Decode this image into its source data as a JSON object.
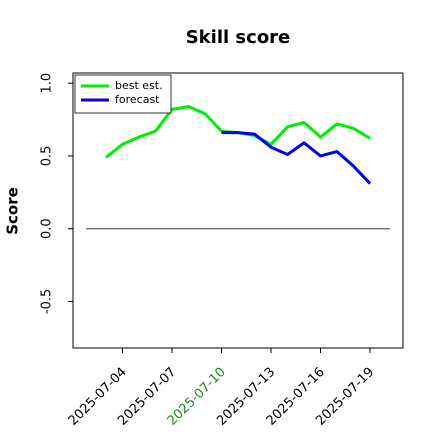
{
  "chart_data": {
    "type": "line",
    "title": "Skill score",
    "y_label": "Score",
    "x": [
      "2025-07-03",
      "2025-07-04",
      "2025-07-05",
      "2025-07-06",
      "2025-07-07",
      "2025-07-08",
      "2025-07-09",
      "2025-07-10",
      "2025-07-11",
      "2025-07-12",
      "2025-07-13",
      "2025-07-14",
      "2025-07-15",
      "2025-07-16",
      "2025-07-17",
      "2025-07-18",
      "2025-07-19"
    ],
    "series": [
      {
        "name": "best est.",
        "color": "#00ee00",
        "values": [
          0.49,
          0.58,
          0.63,
          0.67,
          0.82,
          0.84,
          0.79,
          0.67,
          0.66,
          0.64,
          0.58,
          0.7,
          0.73,
          0.63,
          0.72,
          0.69,
          0.62
        ]
      },
      {
        "name": "forecast",
        "color": "#0000ee",
        "values": [
          null,
          null,
          null,
          null,
          null,
          null,
          null,
          0.66,
          0.66,
          0.65,
          0.56,
          0.51,
          0.59,
          0.5,
          0.53,
          0.43,
          0.31
        ]
      }
    ],
    "xlim": [
      "2025-07-01",
      "2025-07-21"
    ],
    "xticks": [
      "2025-07-04",
      "2025-07-07",
      "2025-07-10",
      "2025-07-13",
      "2025-07-16",
      "2025-07-19"
    ],
    "xtick_label_colors": [
      "#000000",
      "#000000",
      "#228b22",
      "#000000",
      "#000000",
      "#000000"
    ],
    "ylim": [
      -0.82,
      1.07
    ],
    "yticks": [
      -0.5,
      0.0,
      0.5,
      1.0
    ],
    "ytick_labels": [
      "-0.5",
      "0.0",
      "0.5",
      "1.0"
    ],
    "reference_line": 0,
    "legend": "upper left",
    "grid": false
  }
}
